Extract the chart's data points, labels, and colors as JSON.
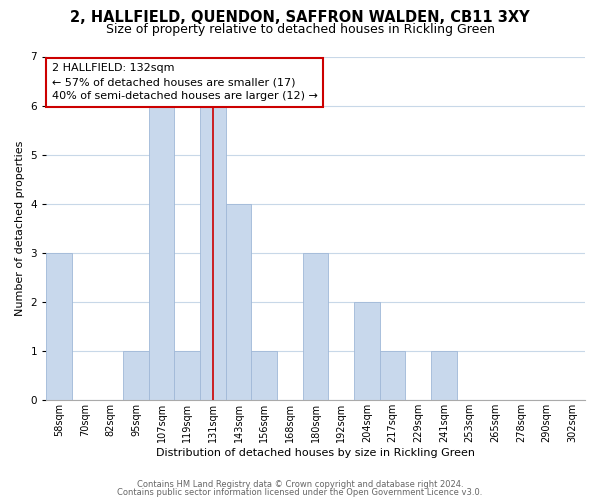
{
  "title": "2, HALLFIELD, QUENDON, SAFFRON WALDEN, CB11 3XY",
  "subtitle": "Size of property relative to detached houses in Rickling Green",
  "xlabel": "Distribution of detached houses by size in Rickling Green",
  "ylabel": "Number of detached properties",
  "tick_labels": [
    "58sqm",
    "70sqm",
    "82sqm",
    "95sqm",
    "107sqm",
    "119sqm",
    "131sqm",
    "143sqm",
    "156sqm",
    "168sqm",
    "180sqm",
    "192sqm",
    "204sqm",
    "217sqm",
    "229sqm",
    "241sqm",
    "253sqm",
    "265sqm",
    "278sqm",
    "290sqm",
    "302sqm"
  ],
  "bar_heights": [
    3,
    0,
    0,
    1,
    6,
    1,
    6,
    4,
    1,
    0,
    3,
    0,
    2,
    1,
    0,
    1,
    0,
    0,
    0,
    0,
    0
  ],
  "bar_color": "#c8d8ec",
  "bar_edge_color": "#a0b8d8",
  "vline_x_index": 6,
  "vline_color": "#cc0000",
  "annotation_line1": "2 HALLFIELD: 132sqm",
  "annotation_line2": "← 57% of detached houses are smaller (17)",
  "annotation_line3": "40% of semi-detached houses are larger (12) →",
  "annotation_box_facecolor": "#ffffff",
  "annotation_box_edgecolor": "#cc0000",
  "ylim_max": 7,
  "yticks": [
    0,
    1,
    2,
    3,
    4,
    5,
    6,
    7
  ],
  "grid_color": "#c8d8e8",
  "footer_line1": "Contains HM Land Registry data © Crown copyright and database right 2024.",
  "footer_line2": "Contains public sector information licensed under the Open Government Licence v3.0.",
  "bg_color": "#ffffff",
  "title_fontsize": 10.5,
  "subtitle_fontsize": 9,
  "axis_label_fontsize": 8,
  "tick_fontsize": 7,
  "annotation_fontsize": 8,
  "footer_fontsize": 6
}
